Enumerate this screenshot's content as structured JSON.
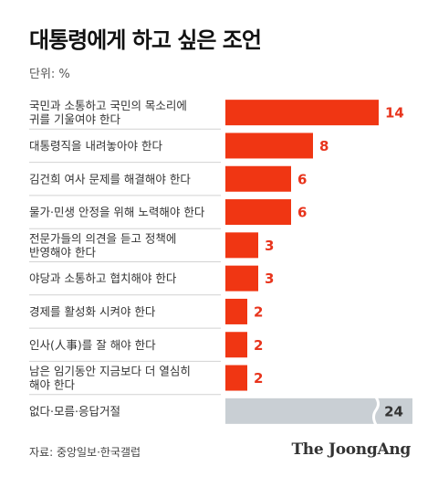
{
  "header": {
    "title": "대통령에게 하고 싶은 조언",
    "unit": "단위: %"
  },
  "footer": {
    "source": "자료: 중앙일보·한국갤럽",
    "brand": "The JoongAng"
  },
  "colors": {
    "primary_bar": "#f03613",
    "other_bar": "#c9cfd4",
    "primary_label": "#e8341c",
    "other_label": "#333333"
  },
  "chart_data": {
    "type": "bar",
    "orientation": "horizontal",
    "title": "대통령에게 하고 싶은 조언",
    "unit": "%",
    "categories": [
      [
        "국민과 소통하고 국민의 목소리에",
        "귀를 기울여야 한다"
      ],
      [
        "대통령직을 내려놓아야 한다"
      ],
      [
        "김건희 여사 문제를 해결해야 한다"
      ],
      [
        "물가·민생 안정을 위해 노력해야 한다"
      ],
      [
        "전문가들의 의견을 듣고 정책에",
        "반영해야 한다"
      ],
      [
        "야당과 소통하고 협치해야 한다"
      ],
      [
        "경제를 활성화 시켜야 한다"
      ],
      [
        "인사(人事)를 잘 해야 한다"
      ],
      [
        "남은 임기동안 지금보다 더 열심히",
        "해야 한다"
      ],
      [
        "없다·모름·응답거절"
      ]
    ],
    "values": [
      14,
      8,
      6,
      6,
      3,
      3,
      2,
      2,
      2,
      24
    ],
    "value_labels": [
      "14",
      "8",
      "6",
      "6",
      "3",
      "3",
      "2",
      "2",
      "2",
      "24"
    ],
    "axis_break_on_last": true,
    "grid": false
  }
}
